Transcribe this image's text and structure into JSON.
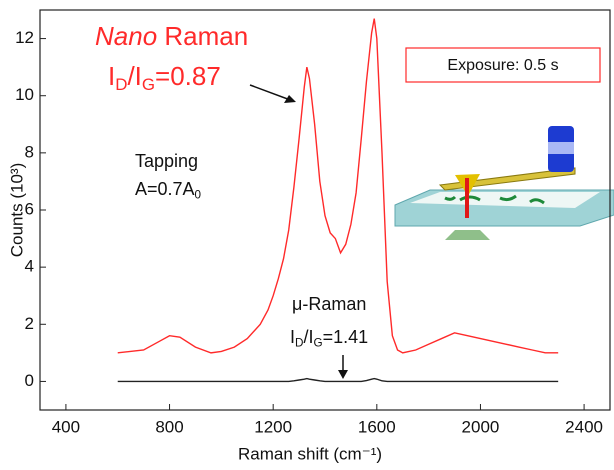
{
  "chart_data": {
    "type": "line",
    "x_label": "Raman shift (cm⁻¹)",
    "y_label": "Counts (10³)",
    "xlim": [
      300,
      2500
    ],
    "xticks": [
      400,
      800,
      1200,
      1600,
      2000,
      2400
    ],
    "ylim": [
      -1,
      13
    ],
    "yticks": [
      0,
      2,
      4,
      6,
      8,
      10,
      12
    ],
    "grid": false,
    "x": [
      600,
      700,
      760,
      800,
      840,
      900,
      960,
      1000,
      1050,
      1100,
      1150,
      1180,
      1200,
      1220,
      1240,
      1260,
      1280,
      1300,
      1320,
      1330,
      1340,
      1360,
      1380,
      1400,
      1420,
      1440,
      1460,
      1480,
      1500,
      1520,
      1540,
      1560,
      1580,
      1590,
      1600,
      1620,
      1640,
      1660,
      1680,
      1700,
      1750,
      1800,
      1850,
      1900,
      1950,
      2000,
      2050,
      2100,
      2150,
      2200,
      2250,
      2300
    ],
    "series": [
      {
        "color": "#ff2a2a",
        "values": [
          1.0,
          1.1,
          1.4,
          1.6,
          1.55,
          1.2,
          1.0,
          1.05,
          1.2,
          1.5,
          2.0,
          2.5,
          3.0,
          3.6,
          4.3,
          5.3,
          6.8,
          8.5,
          10.3,
          11.0,
          10.6,
          9.0,
          7.0,
          5.8,
          5.2,
          5.0,
          4.5,
          4.8,
          5.5,
          6.6,
          8.5,
          10.5,
          12.2,
          12.7,
          12.0,
          8.0,
          3.5,
          1.6,
          1.1,
          1.0,
          1.1,
          1.3,
          1.5,
          1.7,
          1.6,
          1.5,
          1.4,
          1.3,
          1.2,
          1.1,
          1.0,
          1.0
        ]
      },
      {
        "color": "#222222",
        "values": [
          0,
          0,
          0,
          0,
          0,
          0,
          0,
          0,
          0,
          0,
          0,
          0,
          0,
          0,
          0,
          0,
          0.02,
          0.05,
          0.08,
          0.1,
          0.08,
          0.05,
          0.02,
          0,
          0,
          0,
          0,
          0,
          0,
          0,
          0,
          0.03,
          0.08,
          0.1,
          0.08,
          0.02,
          0,
          0,
          0,
          0,
          0,
          0,
          0,
          0,
          0,
          0,
          0,
          0,
          0,
          0,
          0,
          0
        ]
      }
    ],
    "annotations": [
      {
        "color": "#ff2a2a",
        "parts": [
          {
            "text": "Nano",
            "italic": true
          },
          {
            "text": " Raman"
          }
        ]
      },
      {
        "color": "#ff2a2a",
        "parts": [
          {
            "text": "I"
          },
          {
            "text": "D",
            "sub": true
          },
          {
            "text": "/I"
          },
          {
            "text": "G",
            "sub": true
          },
          {
            "text": "=0.87"
          }
        ]
      },
      {
        "color": "#111111",
        "parts": [
          {
            "text": "Tapping"
          }
        ]
      },
      {
        "color": "#111111",
        "parts": [
          {
            "text": "A=0.7A"
          },
          {
            "text": "0",
            "sub": true
          }
        ]
      },
      {
        "color": "#111111",
        "parts": [
          {
            "text": "μ-Raman"
          }
        ]
      },
      {
        "color": "#111111",
        "parts": [
          {
            "text": "I"
          },
          {
            "text": "D",
            "sub": true
          },
          {
            "text": "/I"
          },
          {
            "text": "G",
            "sub": true
          },
          {
            "text": "=1.41"
          }
        ]
      },
      {
        "color": "#111111",
        "parts": [
          {
            "text": "Exposure: 0.5 s"
          }
        ]
      }
    ]
  }
}
